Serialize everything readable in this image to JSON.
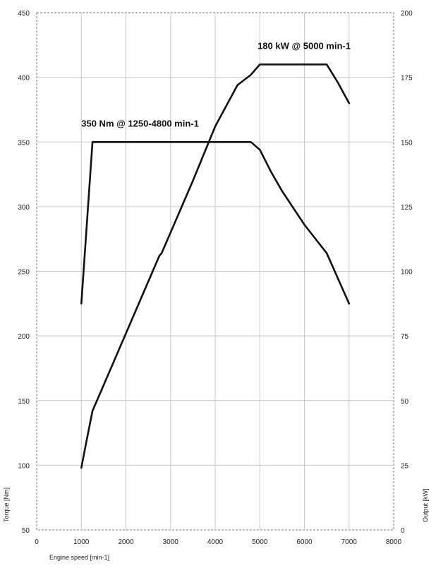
{
  "chart_data": {
    "type": "line",
    "xlabel": "Engine speed [min-1]",
    "ylabel_left": "Torque [Nm]",
    "ylabel_right": "Output [kW]",
    "xlim": [
      0,
      8000
    ],
    "ylim_left": [
      50,
      450
    ],
    "ylim_right": [
      0,
      200
    ],
    "x_ticks": [
      "0",
      "1000",
      "2000",
      "3000",
      "4000",
      "5000",
      "6000",
      "7000",
      "8000"
    ],
    "y_left_ticks": [
      "50",
      "100",
      "150",
      "200",
      "250",
      "300",
      "350",
      "400",
      "450"
    ],
    "y_right_ticks": [
      "0",
      "25",
      "50",
      "75",
      "100",
      "125",
      "150",
      "175",
      "200"
    ],
    "grid": true,
    "series": [
      {
        "axis": "left",
        "x": [
          1000,
          1250,
          4800,
          5000,
          5250,
          5500,
          6000,
          6500,
          7000
        ],
        "y": [
          225,
          350,
          350,
          344,
          327,
          312,
          286,
          264,
          225
        ]
      },
      {
        "axis": "right",
        "x": [
          1000,
          1100,
          1250,
          1500,
          2000,
          2500,
          2750,
          2800,
          3000,
          3500,
          4000,
          4500,
          4800,
          5000,
          6500,
          6750,
          7000
        ],
        "y": [
          24,
          33,
          46,
          56,
          76,
          96,
          106,
          107,
          115,
          135,
          156,
          172,
          176,
          180,
          180,
          173,
          165
        ]
      }
    ],
    "annotations": [
      {
        "text": "350 Nm @ 1250-4800 min-1",
        "x": 1000,
        "y": 362,
        "axis": "left"
      },
      {
        "text": "180 kW @ 5000 min-1",
        "x": 4950,
        "y": 186,
        "axis": "right"
      }
    ]
  }
}
